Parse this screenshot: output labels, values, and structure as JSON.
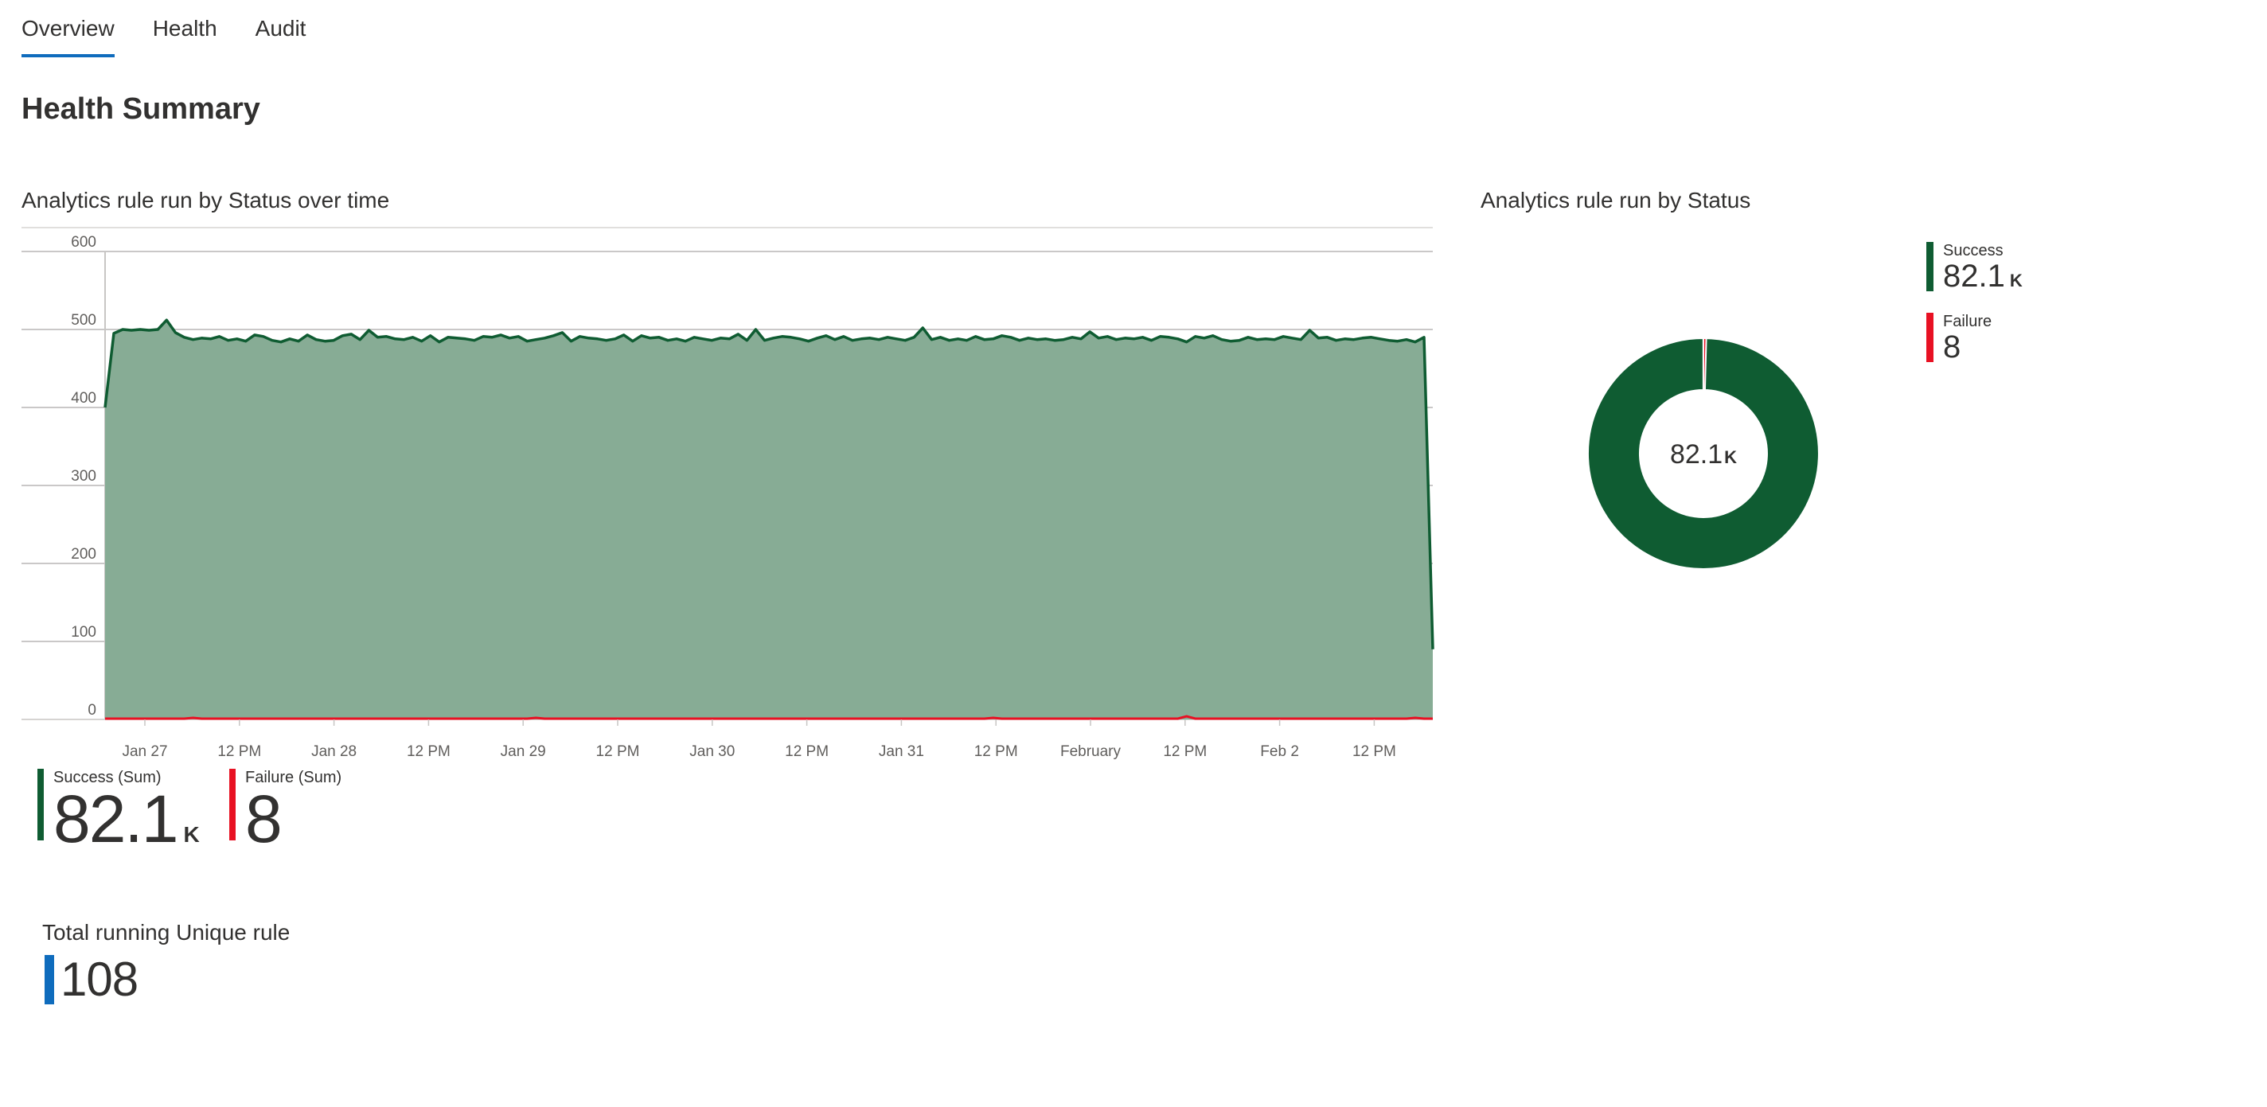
{
  "tabs": [
    {
      "label": "Overview",
      "active": true
    },
    {
      "label": "Health",
      "active": false
    },
    {
      "label": "Audit",
      "active": false
    }
  ],
  "page_title": "Health Summary",
  "colors": {
    "success": "#0f5c32",
    "success_fill": "#87ac95",
    "failure": "#e81123",
    "accent": "#0f6cbd"
  },
  "area_section": {
    "title": "Analytics rule run by Status over time",
    "legend": [
      {
        "label": "Success (Sum)",
        "value": "82.1",
        "unit": "K"
      },
      {
        "label": "Failure (Sum)",
        "value": "8",
        "unit": ""
      }
    ]
  },
  "donut_section": {
    "title": "Analytics rule run by Status",
    "center_value": "82.1",
    "center_unit": "K",
    "legend": [
      {
        "label": "Success",
        "value": "82.1",
        "unit": "K"
      },
      {
        "label": "Failure",
        "value": "8",
        "unit": ""
      }
    ]
  },
  "kpi": {
    "title": "Total running Unique rule",
    "value": "108"
  },
  "chart_data": [
    {
      "type": "area",
      "title": "Analytics rule run by Status over time",
      "xlabel": "",
      "ylabel": "",
      "ylim": [
        0,
        600
      ],
      "yticks": [
        0,
        100,
        200,
        300,
        400,
        500,
        600
      ],
      "xtick_labels": [
        "Jan 27",
        "12 PM",
        "Jan 28",
        "12 PM",
        "Jan 29",
        "12 PM",
        "Jan 30",
        "12 PM",
        "Jan 31",
        "12 PM",
        "February",
        "12 PM",
        "Feb 2",
        "12 PM"
      ],
      "grid": true,
      "series": [
        {
          "name": "Success",
          "values": [
            400,
            495,
            500,
            499,
            500,
            499,
            500,
            512,
            496,
            490,
            487,
            489,
            488,
            491,
            486,
            488,
            485,
            493,
            491,
            486,
            484,
            488,
            485,
            493,
            487,
            485,
            486,
            492,
            494,
            487,
            499,
            490,
            491,
            488,
            487,
            490,
            485,
            492,
            484,
            490,
            489,
            488,
            486,
            491,
            490,
            493,
            489,
            491,
            485,
            487,
            489,
            492,
            496,
            485,
            491,
            489,
            488,
            486,
            488,
            493,
            485,
            492,
            489,
            490,
            486,
            488,
            485,
            490,
            488,
            486,
            489,
            488,
            494,
            486,
            500,
            486,
            489,
            491,
            490,
            488,
            485,
            489,
            492,
            487,
            491,
            486,
            488,
            489,
            487,
            490,
            488,
            486,
            490,
            502,
            487,
            490,
            486,
            488,
            486,
            491,
            487,
            488,
            492,
            490,
            486,
            489,
            487,
            488,
            486,
            487,
            490,
            488,
            497,
            489,
            491,
            487,
            489,
            488,
            490,
            486,
            491,
            490,
            488,
            484,
            491,
            489,
            492,
            487,
            485,
            486,
            490,
            487,
            488,
            487,
            491,
            489,
            487,
            499,
            489,
            490,
            486,
            488,
            487,
            489,
            490,
            488,
            486,
            485,
            487,
            484,
            490,
            90
          ],
          "color": "#0f5c32"
        },
        {
          "name": "Failure",
          "values": [
            0,
            0,
            0,
            0,
            0,
            0,
            0,
            0,
            0,
            0,
            1,
            0,
            0,
            0,
            0,
            0,
            0,
            0,
            0,
            0,
            0,
            0,
            0,
            0,
            0,
            0,
            0,
            0,
            0,
            0,
            0,
            0,
            0,
            0,
            0,
            0,
            0,
            0,
            0,
            0,
            0,
            0,
            0,
            0,
            0,
            0,
            0,
            0,
            0,
            1,
            0,
            0,
            0,
            0,
            0,
            0,
            0,
            0,
            0,
            0,
            0,
            0,
            0,
            0,
            0,
            0,
            0,
            0,
            0,
            0,
            0,
            0,
            0,
            0,
            0,
            0,
            0,
            0,
            0,
            0,
            0,
            0,
            0,
            0,
            0,
            0,
            0,
            0,
            0,
            0,
            0,
            0,
            0,
            0,
            0,
            0,
            0,
            0,
            0,
            0,
            0,
            1,
            0,
            0,
            0,
            0,
            0,
            0,
            0,
            0,
            0,
            0,
            0,
            0,
            0,
            0,
            0,
            0,
            0,
            0,
            0,
            0,
            0,
            3,
            0,
            0,
            0,
            0,
            0,
            0,
            0,
            0,
            0,
            0,
            0,
            0,
            0,
            0,
            0,
            0,
            0,
            0,
            0,
            0,
            0,
            0,
            0,
            0,
            0,
            1,
            0,
            0
          ],
          "color": "#e81123"
        }
      ]
    },
    {
      "type": "pie",
      "title": "Analytics rule run by Status",
      "categories": [
        "Success",
        "Failure"
      ],
      "values": [
        82100,
        8
      ],
      "colors": [
        "#0f5c32",
        "#e81123"
      ]
    }
  ]
}
